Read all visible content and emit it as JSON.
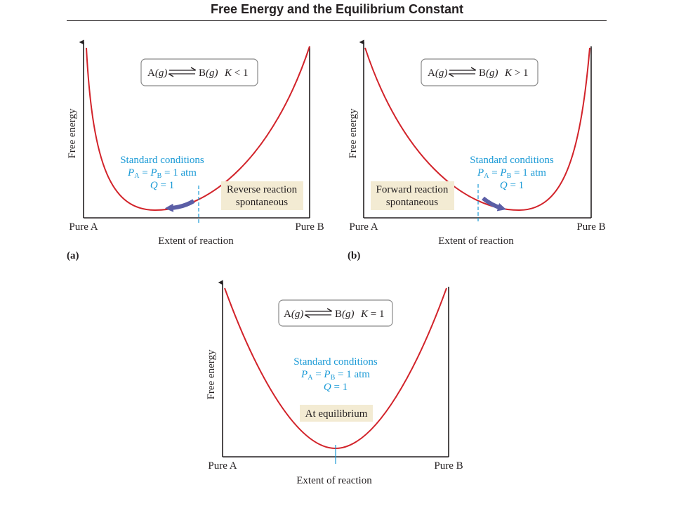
{
  "page": {
    "title": "Free Energy and the Equilibrium Constant"
  },
  "colors": {
    "curve": "#d2232a",
    "standard_conditions": "#1a9ad6",
    "arrow": "#5b5ea6",
    "label_box": "#f3ebd3",
    "equation_box_border": "#8a8a8a",
    "axis": "#231f20"
  },
  "panels": [
    {
      "letter": "(a)",
      "y_axis_label": "Free energy",
      "x_axis_label": "Extent of reaction",
      "left_tick": "Pure A",
      "right_tick": "Pure B",
      "equation": {
        "reactant": "A",
        "reactant_phase": "(g)",
        "product": "B",
        "product_phase": "(g)",
        "k_symbol": "K",
        "relation": "< 1"
      },
      "standard_conditions": {
        "line1": "Standard conditions",
        "P": "P",
        "sub_a": "A",
        "sub_b": "B",
        "equals": "=",
        "atm": "= 1 atm",
        "Q": "Q",
        "q_value": "= 1"
      },
      "status_line1": "Reverse reaction",
      "status_line2": "spontaneous",
      "arrow_direction": "toward Pure A"
    },
    {
      "letter": "(b)",
      "y_axis_label": "Free energy",
      "x_axis_label": "Extent of reaction",
      "left_tick": "Pure A",
      "right_tick": "Pure B",
      "equation": {
        "reactant": "A",
        "reactant_phase": "(g)",
        "product": "B",
        "product_phase": "(g)",
        "k_symbol": "K",
        "relation": "> 1"
      },
      "standard_conditions": {
        "line1": "Standard conditions",
        "P": "P",
        "sub_a": "A",
        "sub_b": "B",
        "equals": "=",
        "atm": "= 1 atm",
        "Q": "Q",
        "q_value": "= 1"
      },
      "status_line1": "Forward reaction",
      "status_line2": "spontaneous",
      "arrow_direction": "toward Pure B"
    },
    {
      "letter": "",
      "y_axis_label": "Free energy",
      "x_axis_label": "Extent of reaction",
      "left_tick": "Pure A",
      "right_tick": "Pure B",
      "equation": {
        "reactant": "A",
        "reactant_phase": "(g)",
        "product": "B",
        "product_phase": "(g)",
        "k_symbol": "K",
        "relation": "= 1"
      },
      "standard_conditions": {
        "line1": "Standard conditions",
        "P": "P",
        "sub_a": "A",
        "sub_b": "B",
        "equals": "=",
        "atm": "= 1 atm",
        "Q": "Q",
        "q_value": "= 1"
      },
      "status_line1": "At equilibrium",
      "status_line2": "",
      "arrow_direction": "none"
    }
  ]
}
